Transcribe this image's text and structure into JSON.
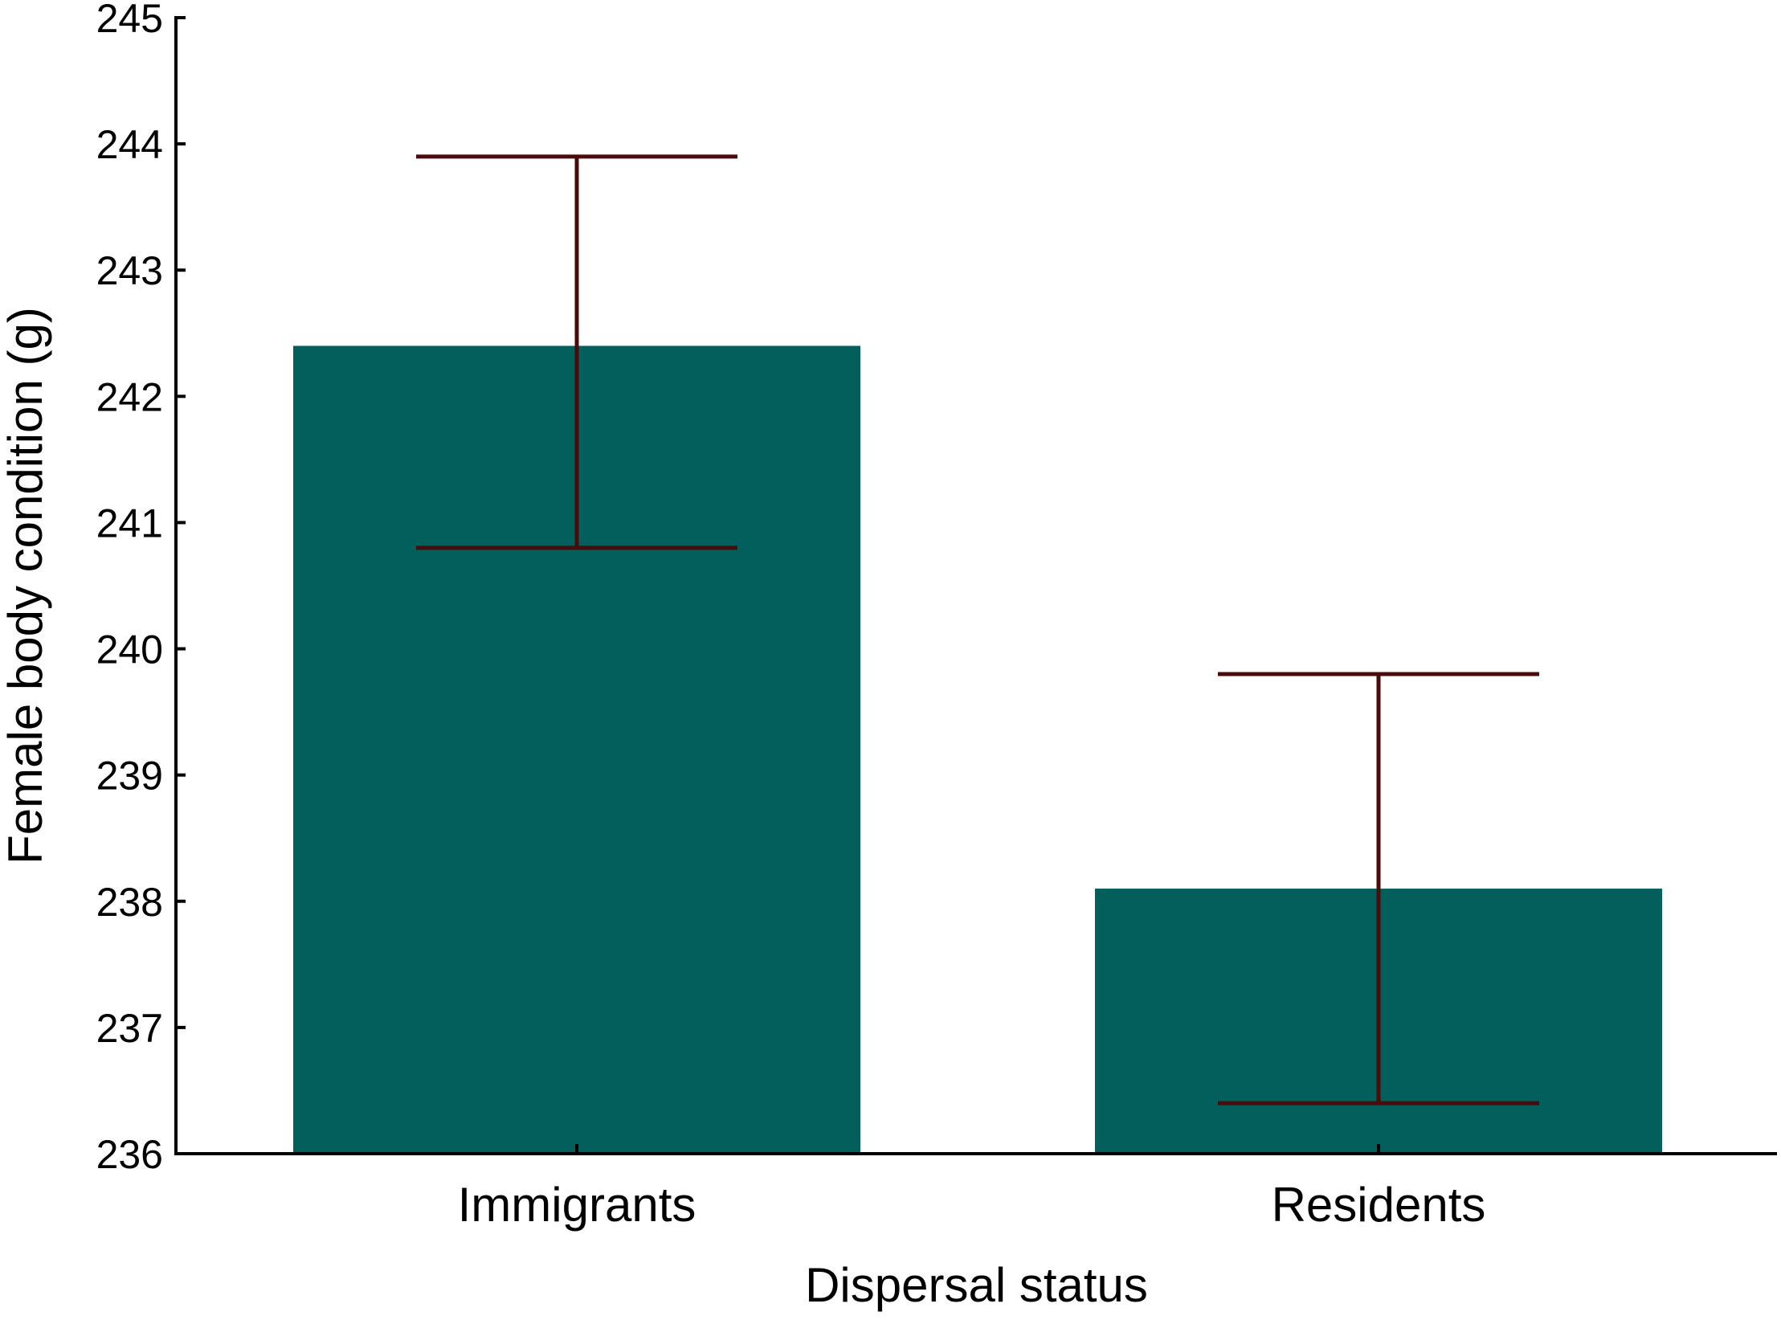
{
  "chart_data": {
    "type": "bar",
    "title": "",
    "xlabel": "Dispersal status",
    "ylabel": "Female body condition (g)",
    "categories": [
      "Immigrants",
      "Residents"
    ],
    "values": [
      242.4,
      238.1
    ],
    "error_upper": [
      243.9,
      239.8
    ],
    "error_lower": [
      240.8,
      236.4
    ],
    "ylim": [
      236,
      245
    ],
    "yticks": [
      "236",
      "237",
      "238",
      "239",
      "240",
      "241",
      "242",
      "243",
      "244",
      "245"
    ],
    "grid": false,
    "legend": "none",
    "colors": {
      "bar": "#035f5c",
      "error": "#4a0b0b",
      "axis": "#000000"
    }
  }
}
